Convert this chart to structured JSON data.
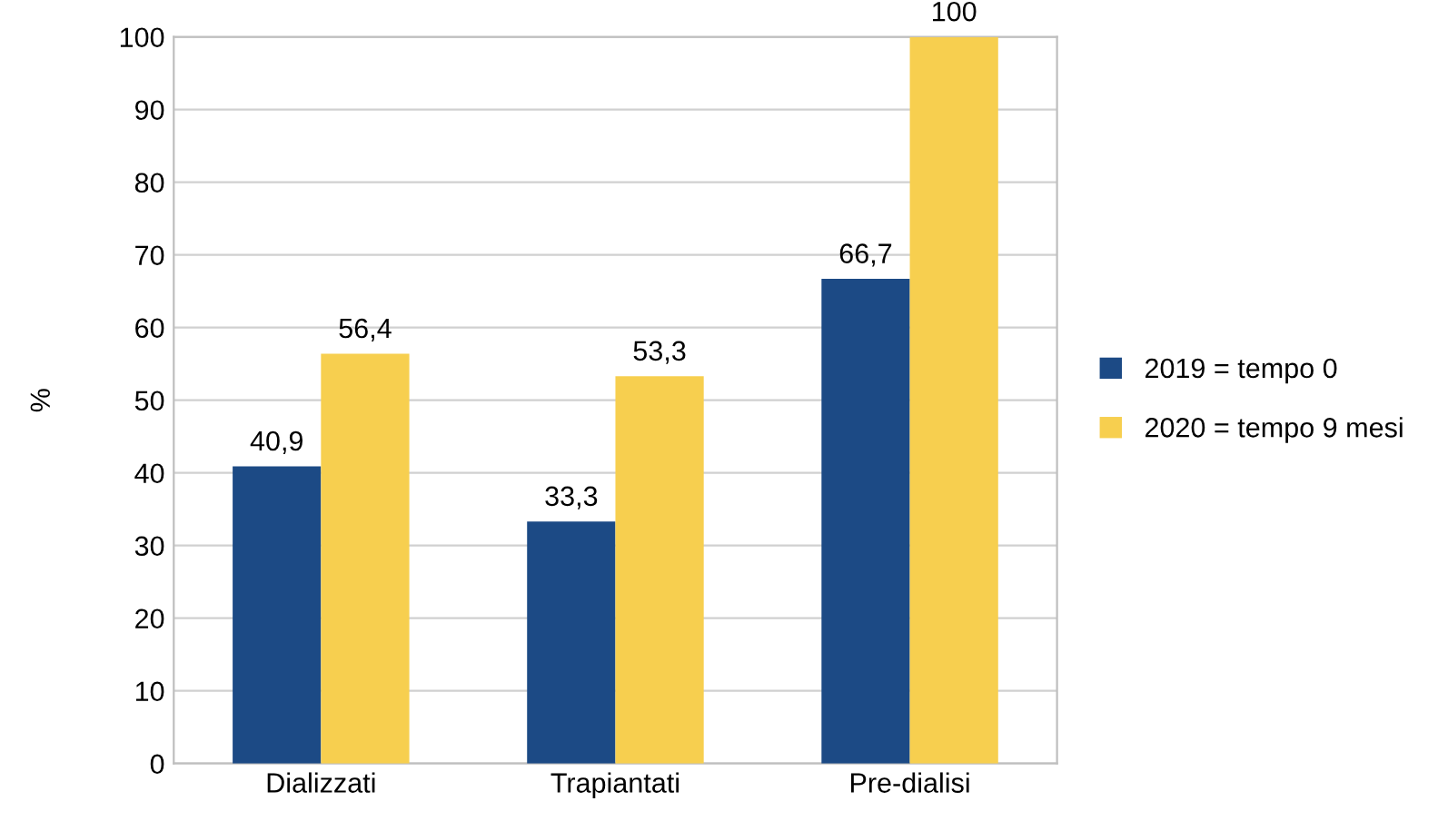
{
  "chart_data": {
    "type": "bar",
    "ylabel": "%",
    "categories": [
      "Dializzati",
      "Trapiantati",
      "Pre-dialisi"
    ],
    "series": [
      {
        "name": "2019 = tempo 0",
        "color": "#1c4a85",
        "values": [
          40.9,
          33.3,
          66.7
        ],
        "value_labels": [
          "40,9",
          "33,3",
          "66,7"
        ]
      },
      {
        "name": "2020 = tempo 9 mesi",
        "color": "#f7cf4f",
        "values": [
          56.4,
          53.3,
          100
        ],
        "value_labels": [
          "56,4",
          "53,3",
          "100"
        ]
      }
    ],
    "ylim": [
      0,
      100
    ],
    "yticks": [
      0,
      10,
      20,
      30,
      40,
      50,
      60,
      70,
      80,
      90,
      100
    ],
    "grid": "y",
    "legend": "right"
  }
}
